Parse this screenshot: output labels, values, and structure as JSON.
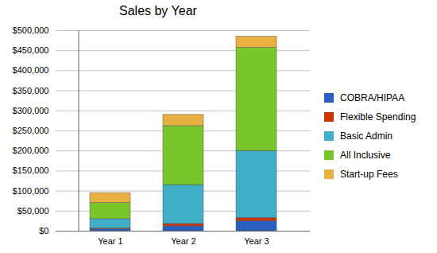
{
  "chart_data": {
    "type": "bar",
    "title": "Sales by Year",
    "categories": [
      "Year 1",
      "Year 2",
      "Year 3"
    ],
    "stacked": true,
    "grid": true,
    "legend": "right",
    "ylim": [
      0,
      500000
    ],
    "yticks": [
      {
        "value": 0,
        "label": "$0"
      },
      {
        "value": 50000,
        "label": "$50,000"
      },
      {
        "value": 100000,
        "label": "$100,000"
      },
      {
        "value": 150000,
        "label": "$150,000"
      },
      {
        "value": 200000,
        "label": "$200,000"
      },
      {
        "value": 250000,
        "label": "$250,000"
      },
      {
        "value": 300000,
        "label": "$300,000"
      },
      {
        "value": 350000,
        "label": "$350,000"
      },
      {
        "value": 400000,
        "label": "$400,000"
      },
      {
        "value": 450000,
        "label": "$450,000"
      },
      {
        "value": 500000,
        "label": "$500,000"
      }
    ],
    "series": [
      {
        "name": "COBRA/HIPAA",
        "color": "#2a5fbf",
        "values": [
          5000,
          12000,
          25000
        ]
      },
      {
        "name": "Flexible Spending",
        "color": "#cc3300",
        "values": [
          2000,
          6000,
          8000
        ]
      },
      {
        "name": "Basic Admin",
        "color": "#40aec6",
        "values": [
          23000,
          97000,
          167000
        ]
      },
      {
        "name": "All Inclusive",
        "color": "#78c62c",
        "values": [
          40000,
          147000,
          257000
        ]
      },
      {
        "name": "Start-up Fees",
        "color": "#e8b040",
        "values": [
          25000,
          28000,
          28000
        ]
      }
    ]
  }
}
